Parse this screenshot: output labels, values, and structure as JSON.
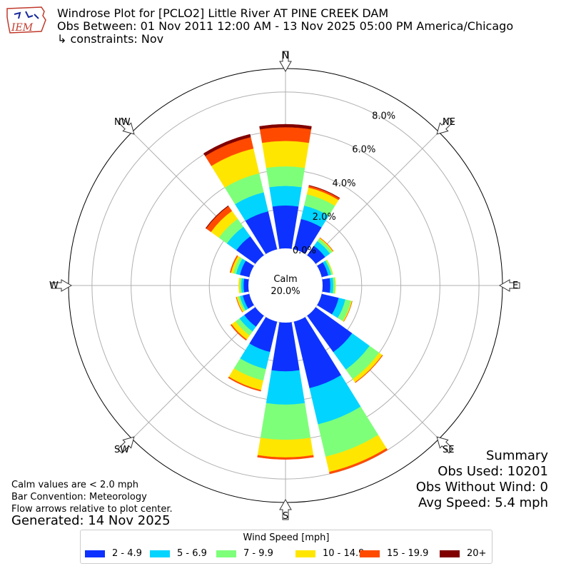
{
  "header": {
    "title": "Windrose Plot for [PCLO2] Little River  AT PINE CREEK DAM",
    "subtitle": "Obs Between: 01 Nov 2011 12:00 AM - 13 Nov 2025 05:00 PM America/Chicago",
    "constraints": "↳ constraints: Nov",
    "logo_text": "IEM"
  },
  "notes": {
    "line1": "Calm values are < 2.0 mph",
    "line2": "Bar Convention: Meteorology",
    "line3": "Flow arrows relative to plot center.",
    "generated": "Generated: 14 Nov 2025"
  },
  "summary": {
    "title": "Summary",
    "obs_used": "Obs Used: 10201",
    "obs_without_wind": "Obs Without Wind: 0",
    "avg_speed": "Avg Speed: 5.4 mph"
  },
  "legend": {
    "title": "Wind Speed [mph]",
    "items": [
      {
        "label": "2 - 4.9",
        "color": "#0d32ff"
      },
      {
        "label": "5 - 6.9",
        "color": "#00d4ff"
      },
      {
        "label": "7 - 9.9",
        "color": "#7dff7a"
      },
      {
        "label": "10 - 14.9",
        "color": "#ffe600"
      },
      {
        "label": "15 - 19.9",
        "color": "#ff4a00"
      },
      {
        "label": "20+",
        "color": "#800000"
      }
    ]
  },
  "chart_data": {
    "type": "windrose",
    "calm_label": "Calm",
    "calm_value": "20.0%",
    "radial_ticks": [
      "0.0%",
      "2.0%",
      "4.0%",
      "6.0%",
      "8.0%"
    ],
    "radial_tick_values": [
      0,
      2,
      4,
      6,
      8
    ],
    "rmax": 9.2,
    "compass_labels": [
      "N",
      "NE",
      "E",
      "SE",
      "S",
      "SW",
      "W",
      "NW"
    ],
    "bin_labels": [
      "2 - 4.9",
      "5 - 6.9",
      "7 - 9.9",
      "10 - 14.9",
      "15 - 19.9",
      "20+"
    ],
    "directions": [
      {
        "dir": "N",
        "values": [
          2.2,
          1.0,
          1.0,
          1.3,
          0.7,
          0.15
        ]
      },
      {
        "dir": "NNE",
        "values": [
          1.6,
          0.7,
          0.6,
          0.35,
          0.1,
          0.02
        ]
      },
      {
        "dir": "NE",
        "values": [
          0.6,
          0.3,
          0.15,
          0.05,
          0.02,
          0.0
        ]
      },
      {
        "dir": "ENE",
        "values": [
          0.35,
          0.15,
          0.08,
          0.02,
          0.0,
          0.0
        ]
      },
      {
        "dir": "E",
        "values": [
          0.4,
          0.15,
          0.1,
          0.02,
          0.0,
          0.0
        ]
      },
      {
        "dir": "ESE",
        "values": [
          0.9,
          0.35,
          0.3,
          0.05,
          0.01,
          0.0
        ]
      },
      {
        "dir": "SE",
        "values": [
          2.3,
          1.1,
          0.6,
          0.2,
          0.03,
          0.0
        ]
      },
      {
        "dir": "SSE",
        "values": [
          3.5,
          1.9,
          1.7,
          0.8,
          0.1,
          0.0
        ]
      },
      {
        "dir": "S",
        "values": [
          2.5,
          1.7,
          1.8,
          0.9,
          0.1,
          0.0
        ]
      },
      {
        "dir": "SSW",
        "values": [
          1.6,
          0.9,
          0.6,
          0.5,
          0.06,
          0.0
        ]
      },
      {
        "dir": "SW",
        "values": [
          0.7,
          0.3,
          0.25,
          0.25,
          0.06,
          0.0
        ]
      },
      {
        "dir": "WSW",
        "values": [
          0.35,
          0.15,
          0.1,
          0.08,
          0.02,
          0.0
        ]
      },
      {
        "dir": "W",
        "values": [
          0.25,
          0.12,
          0.08,
          0.05,
          0.0,
          0.0
        ]
      },
      {
        "dir": "WNW",
        "values": [
          0.5,
          0.2,
          0.15,
          0.12,
          0.05,
          0.0
        ]
      },
      {
        "dir": "NW",
        "values": [
          1.2,
          0.6,
          0.5,
          0.5,
          0.3,
          0.03
        ]
      },
      {
        "dir": "NNW",
        "values": [
          2.0,
          1.0,
          1.0,
          1.3,
          0.6,
          0.15
        ]
      }
    ]
  }
}
